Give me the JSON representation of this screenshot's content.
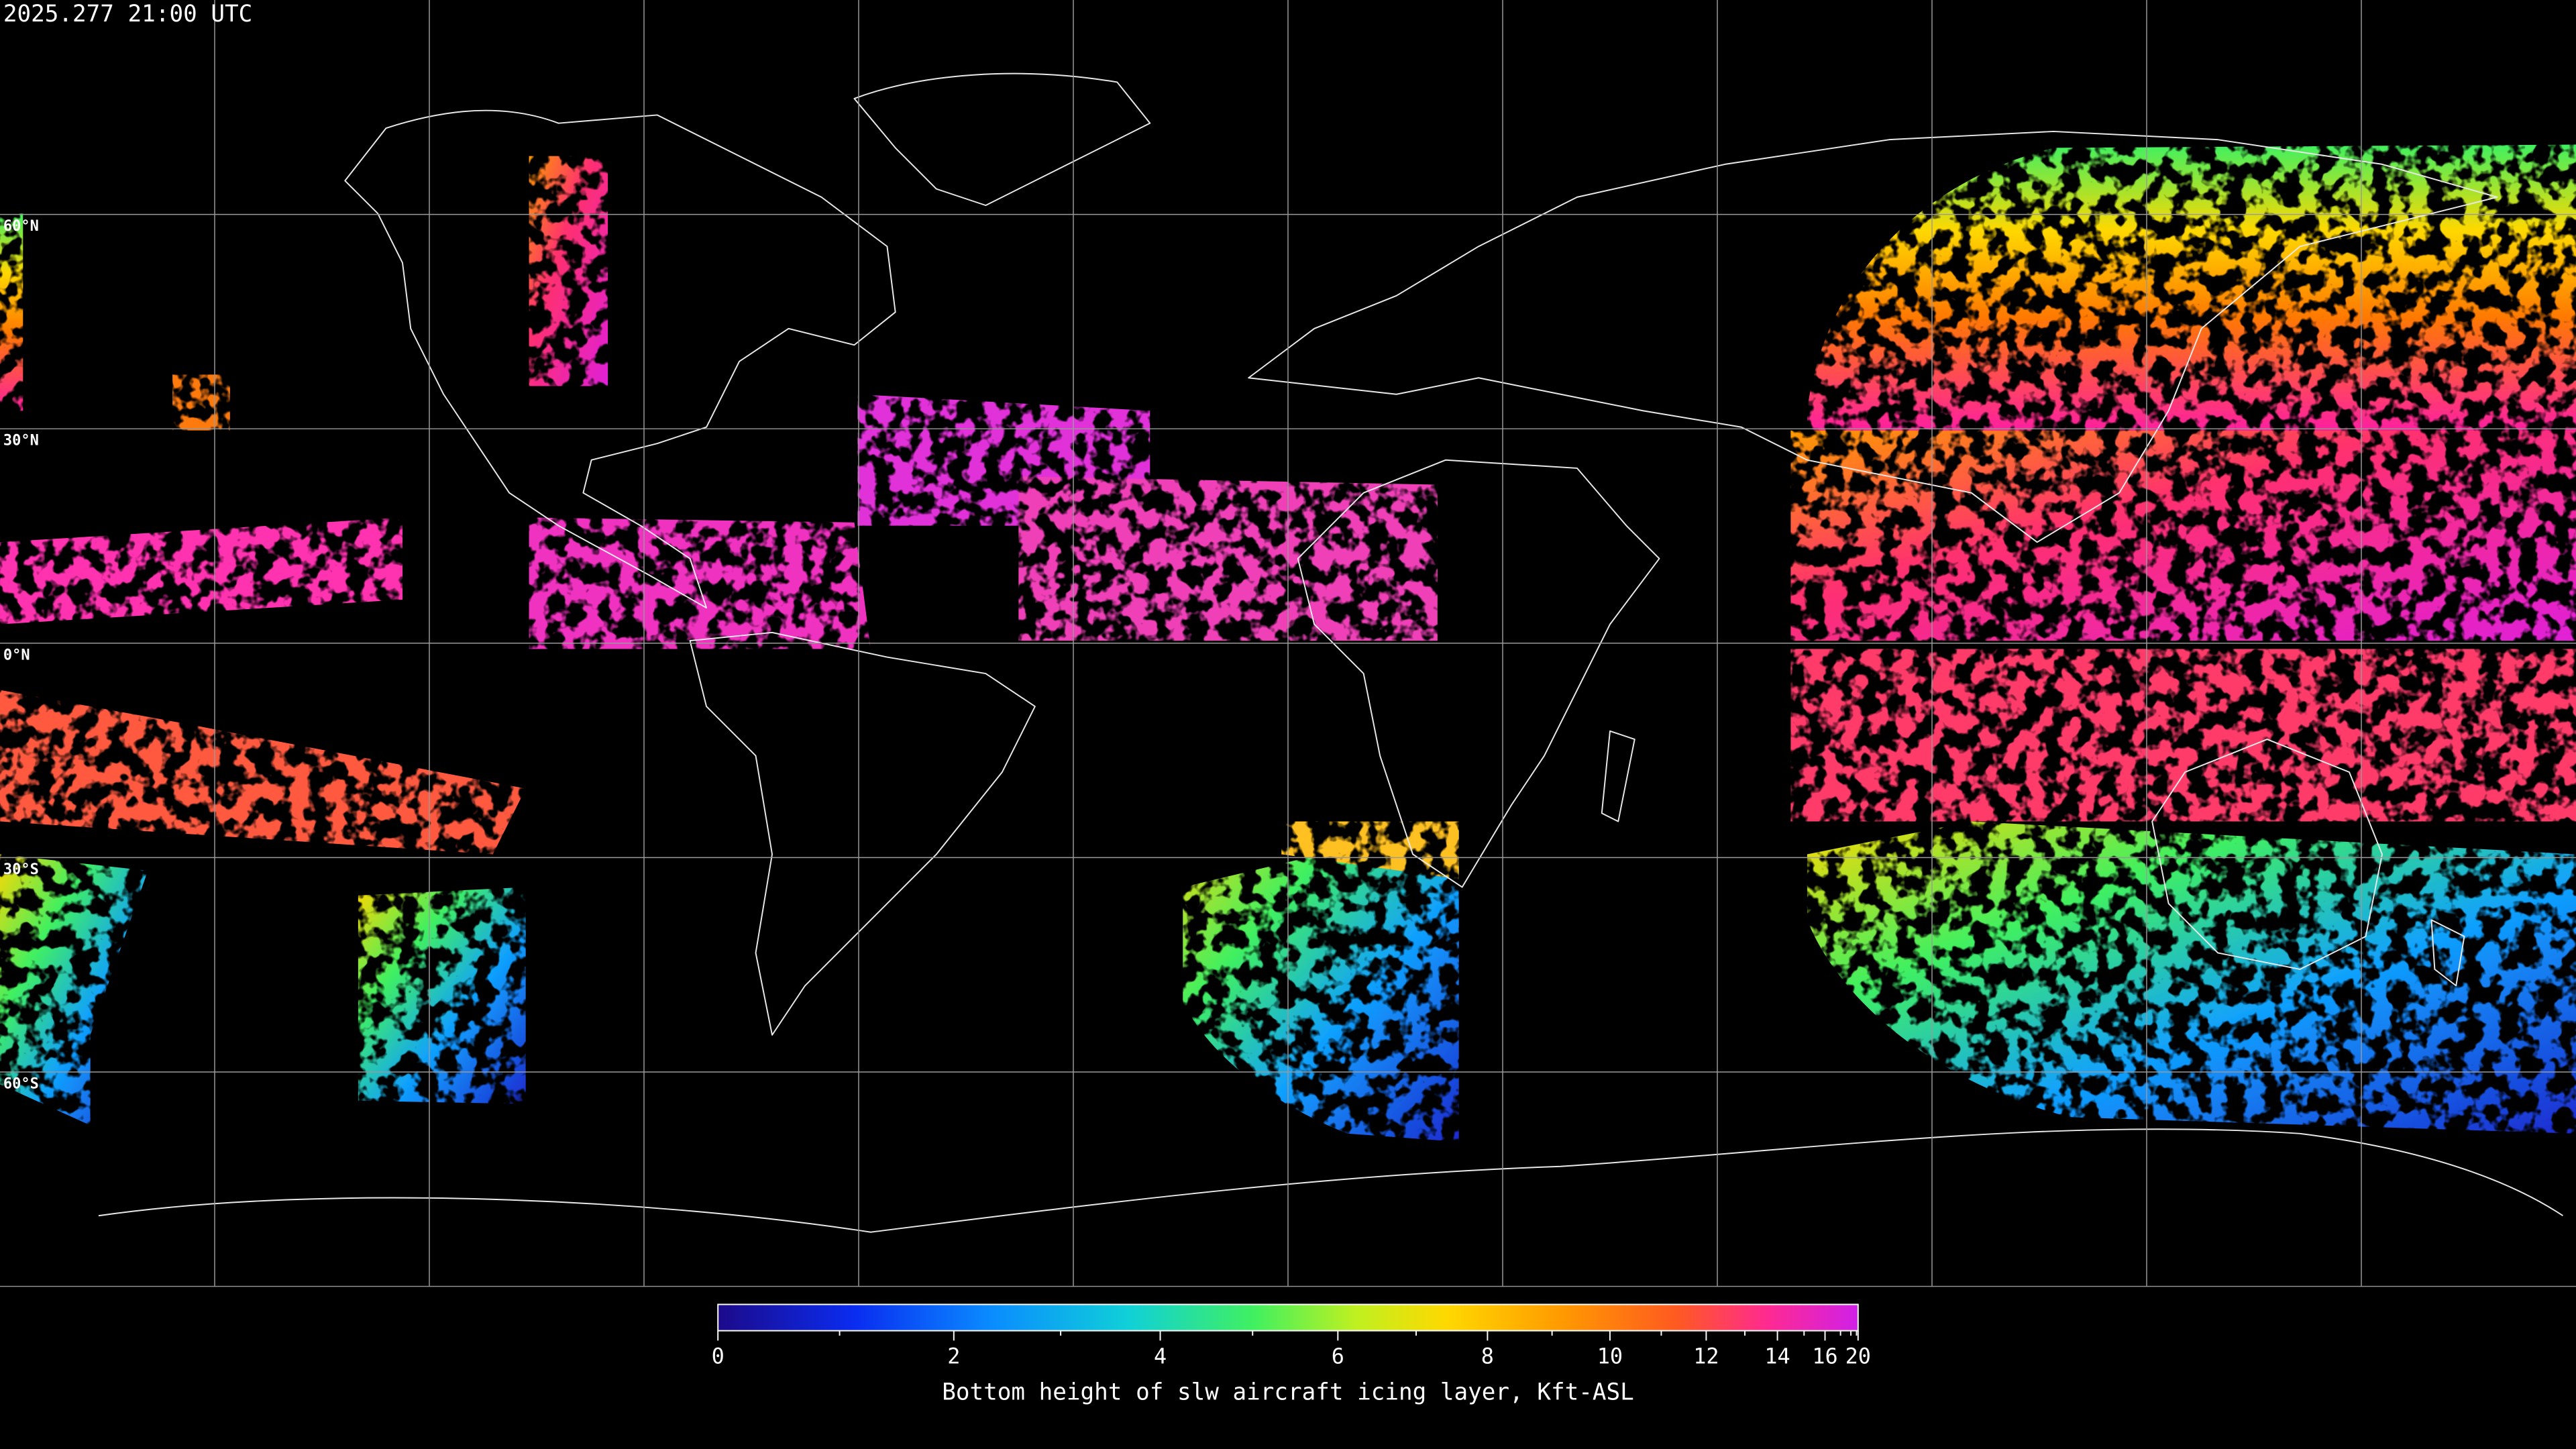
{
  "header": {
    "title": "2025.277 21:00 UTC"
  },
  "map": {
    "lat_labels": [
      "60°N",
      "30°N",
      "0°N",
      "30°S",
      "60°S"
    ]
  },
  "colorbar": {
    "ticks": [
      0,
      2,
      4,
      6,
      8,
      10,
      12,
      14,
      16,
      20
    ],
    "minor_ticks": [
      1,
      3,
      5,
      7,
      9,
      11,
      13,
      15,
      17,
      18,
      19
    ],
    "range": [
      0,
      20
    ],
    "label": "Bottom height of slw aircraft icing layer, Kft-ASL"
  }
}
